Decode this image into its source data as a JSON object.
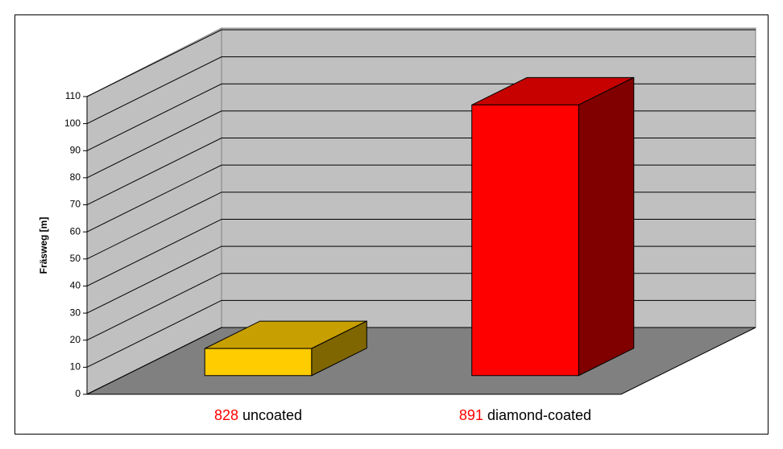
{
  "chart_data": {
    "type": "bar3d",
    "y_label": "Fräsweg [m]",
    "category_prefixes": [
      "828",
      "891"
    ],
    "category_prefix_color": "#ff0000",
    "categories": [
      "uncoated",
      "diamond-coated"
    ],
    "values": [
      10,
      100
    ],
    "colors": [
      "#ffcc00",
      "#ff0000"
    ],
    "ylim": [
      0,
      110
    ],
    "yticks": [
      0,
      10,
      20,
      30,
      40,
      50,
      60,
      70,
      80,
      90,
      100,
      110
    ],
    "grid": true
  }
}
